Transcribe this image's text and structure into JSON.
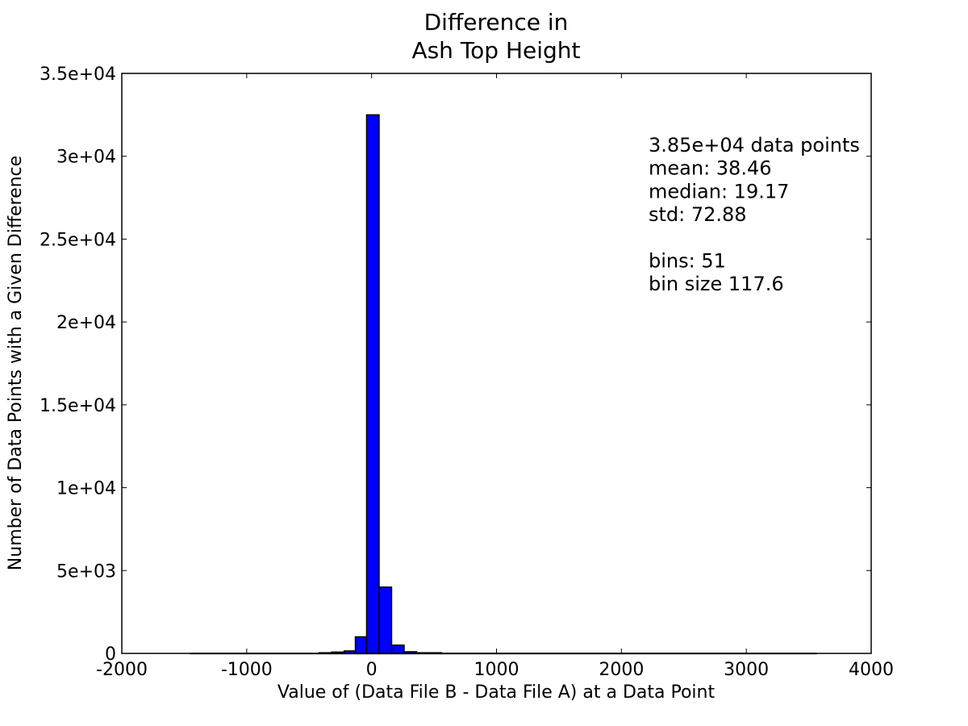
{
  "chart_data": {
    "type": "bar",
    "title": [
      "Difference in",
      "Ash Top Height"
    ],
    "xlabel": "Value of (Data File B - Data File A) at a Data Point",
    "ylabel": "Number of Data Points with a Given Difference",
    "xlim": [
      -2000,
      4000
    ],
    "ylim": [
      0,
      35000
    ],
    "xticks": [
      -2000,
      -1000,
      0,
      1000,
      2000,
      3000,
      4000
    ],
    "xtick_labels": [
      "-2000",
      "-1000",
      "0",
      "1000",
      "2000",
      "3000",
      "4000"
    ],
    "yticks": [
      0,
      5000,
      10000,
      15000,
      20000,
      25000,
      30000,
      35000
    ],
    "ytick_labels": [
      "0",
      "5e+03",
      "1e+04",
      "1.5e+04",
      "2e+04",
      "2.5e+04",
      "3e+04",
      "3.5e+04"
    ],
    "grid": false,
    "bar_color": "#0000ff",
    "bins": [
      {
        "x": -1450,
        "width": 2000,
        "value": 5
      },
      {
        "x": -420,
        "width": 100,
        "value": 40
      },
      {
        "x": -320,
        "width": 100,
        "value": 80
      },
      {
        "x": -220,
        "width": 100,
        "value": 150
      },
      {
        "x": -130,
        "width": 100,
        "value": 1000
      },
      {
        "x": -40,
        "width": 100,
        "value": 32500
      },
      {
        "x": 60,
        "width": 100,
        "value": 4000
      },
      {
        "x": 160,
        "width": 100,
        "value": 500
      },
      {
        "x": 260,
        "width": 100,
        "value": 100
      },
      {
        "x": 360,
        "width": 200,
        "value": 40
      },
      {
        "x": 560,
        "width": 3000,
        "value": 5
      }
    ],
    "annotation_lines": [
      "3.85e+04 data points",
      "mean: 38.46",
      "median: 19.17",
      "std: 72.88",
      "",
      "bins: 51",
      "bin size 117.6"
    ]
  }
}
